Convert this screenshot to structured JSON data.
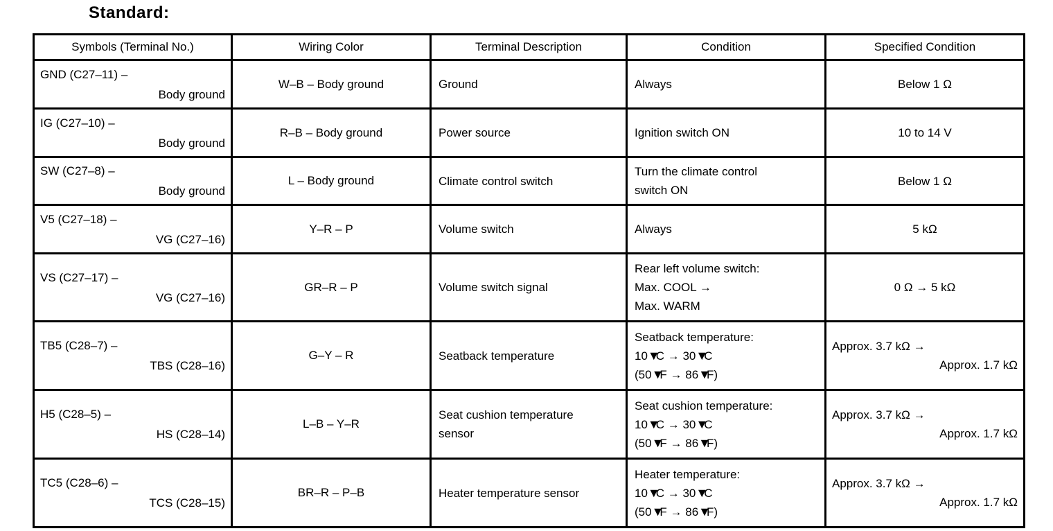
{
  "title": "Standard:",
  "colors": {
    "text": "#000000",
    "border": "#000000",
    "background": "#ffffff"
  },
  "table": {
    "headers": [
      "Symbols (Terminal No.)",
      "Wiring Color",
      "Terminal Description",
      "Condition",
      "Specified Condition"
    ],
    "rows": [
      {
        "symbols": [
          "GND (C27–11) –",
          "Body ground"
        ],
        "wiring_color": "W–B – Body ground",
        "terminal_description": [
          "Ground"
        ],
        "condition": [
          "Always"
        ],
        "specified": {
          "align": "center",
          "lines": [
            "Below 1 Ω"
          ]
        }
      },
      {
        "symbols": [
          "IG (C27–10) –",
          "Body ground"
        ],
        "wiring_color": "R–B – Body ground",
        "terminal_description": [
          "Power source"
        ],
        "condition": [
          "Ignition switch ON"
        ],
        "specified": {
          "align": "center",
          "lines": [
            "10 to 14 V"
          ]
        }
      },
      {
        "symbols": [
          "SW (C27–8) –",
          "Body ground"
        ],
        "wiring_color": "L – Body ground",
        "terminal_description": [
          "Climate control switch"
        ],
        "condition": [
          "Turn the climate control",
          "switch ON"
        ],
        "specified": {
          "align": "center",
          "lines": [
            "Below 1 Ω"
          ]
        }
      },
      {
        "symbols": [
          "V5 (C27–18) –",
          "VG (C27–16)"
        ],
        "wiring_color": "Y–R – P",
        "terminal_description": [
          "Volume switch"
        ],
        "condition": [
          "Always"
        ],
        "specified": {
          "align": "center",
          "lines": [
            "5 kΩ"
          ]
        }
      },
      {
        "symbols": [
          "VS (C27–17) –",
          "VG (C27–16)"
        ],
        "wiring_color": "GR–R – P",
        "terminal_description": [
          "Volume switch signal"
        ],
        "condition": [
          "Rear left volume switch:",
          "Max. COOL →",
          "Max. WARM"
        ],
        "specified": {
          "align": "center",
          "lines": [
            "0 Ω → 5 kΩ"
          ]
        }
      },
      {
        "symbols": [
          "TB5 (C28–7) –",
          "TBS (C28–16)"
        ],
        "wiring_color": "G–Y – R",
        "terminal_description": [
          "Seatback temperature"
        ],
        "condition": [
          "Seatback temperature:",
          "10▼C → 30▼C",
          "(50▼F → 86▼F)"
        ],
        "specified": {
          "align": "split",
          "lines": [
            "Approx. 3.7 kΩ →",
            "Approx. 1.7 kΩ"
          ]
        }
      },
      {
        "symbols": [
          "H5 (C28–5) –",
          "HS (C28–14)"
        ],
        "wiring_color": "L–B – Y–R",
        "terminal_description": [
          "Seat cushion temperature",
          "sensor"
        ],
        "condition": [
          "Seat cushion temperature:",
          "10▼C → 30▼C",
          "(50▼F → 86▼F)"
        ],
        "specified": {
          "align": "split",
          "lines": [
            "Approx. 3.7 kΩ →",
            "Approx. 1.7 kΩ"
          ]
        }
      },
      {
        "symbols": [
          "TC5 (C28–6) –",
          "TCS (C28–15)"
        ],
        "wiring_color": "BR–R – P–B",
        "terminal_description": [
          "Heater temperature sensor"
        ],
        "condition": [
          "Heater temperature:",
          "10▼C → 30▼C",
          "(50▼F → 86▼F)"
        ],
        "specified": {
          "align": "split",
          "lines": [
            "Approx. 3.7 kΩ →",
            "Approx. 1.7 kΩ"
          ]
        }
      }
    ]
  }
}
